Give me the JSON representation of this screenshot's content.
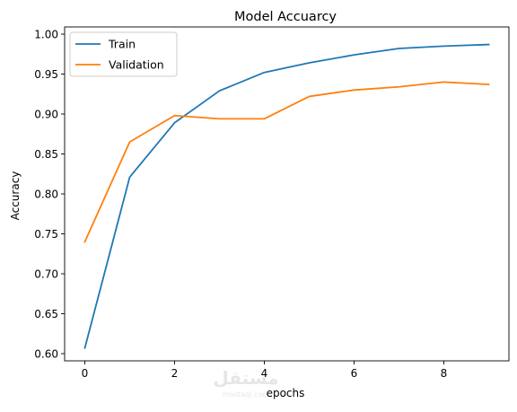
{
  "chart_data": {
    "type": "line",
    "title": "Model Accuarcy",
    "xlabel": "epochs",
    "ylabel": "Accuracy",
    "x": [
      0,
      1,
      2,
      3,
      4,
      5,
      6,
      7,
      8,
      9
    ],
    "xlim": [
      -0.45,
      9.45
    ],
    "ylim": [
      0.591,
      1.009
    ],
    "xticks": [
      0,
      2,
      4,
      6,
      8
    ],
    "yticks": [
      0.6,
      0.65,
      0.7,
      0.75,
      0.8,
      0.85,
      0.9,
      0.95,
      1.0
    ],
    "xtick_labels": [
      "0",
      "2",
      "4",
      "6",
      "8"
    ],
    "ytick_labels": [
      "0.60",
      "0.65",
      "0.70",
      "0.75",
      "0.80",
      "0.85",
      "0.90",
      "0.95",
      "1.00"
    ],
    "grid": false,
    "legend_position": "top-left",
    "series": [
      {
        "name": "Train",
        "color": "#1f77b4",
        "values": [
          0.607,
          0.821,
          0.889,
          0.929,
          0.952,
          0.964,
          0.974,
          0.982,
          0.985,
          0.987
        ]
      },
      {
        "name": "Validation",
        "color": "#ff7f0e",
        "values": [
          0.74,
          0.865,
          0.898,
          0.894,
          0.894,
          0.922,
          0.93,
          0.934,
          0.94,
          0.937
        ]
      }
    ]
  },
  "watermark": {
    "text_arabic": "مستقل",
    "text_latin": "mostaql.com"
  }
}
